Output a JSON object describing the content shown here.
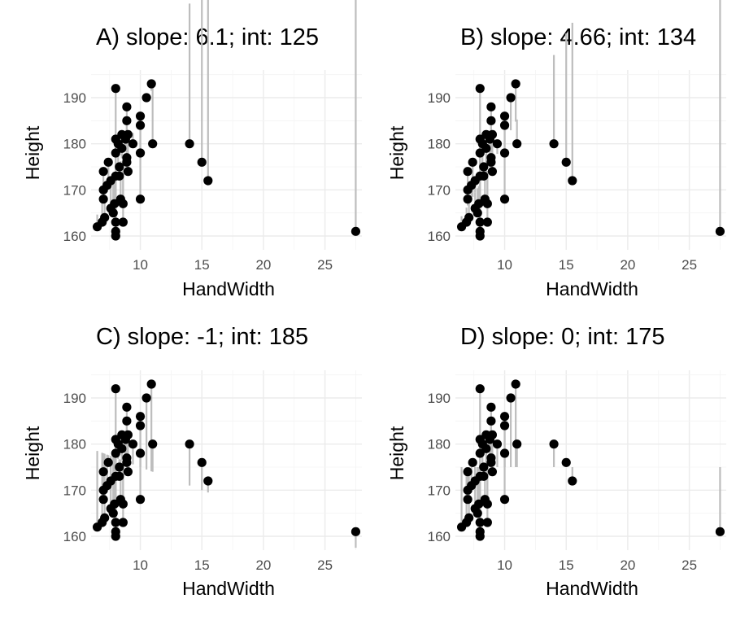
{
  "chart_data": [
    {
      "type": "scatter",
      "title": "A) slope:  6.1; int: 125",
      "xlabel": "HandWidth",
      "ylabel": "Height",
      "slope": 6.1,
      "intercept": 125,
      "xlim": [
        6,
        28
      ],
      "ylim": [
        157,
        196
      ],
      "xticks": [
        10,
        15,
        20,
        25
      ],
      "yticks": [
        160,
        170,
        180,
        190
      ],
      "grid": true,
      "residual_segments": true
    },
    {
      "type": "scatter",
      "title": "B) slope:  4.66; int: 134",
      "xlabel": "HandWidth",
      "ylabel": "Height",
      "slope": 4.66,
      "intercept": 134,
      "xlim": [
        6,
        28
      ],
      "ylim": [
        157,
        196
      ],
      "xticks": [
        10,
        15,
        20,
        25
      ],
      "yticks": [
        160,
        170,
        180,
        190
      ],
      "grid": true,
      "residual_segments": true
    },
    {
      "type": "scatter",
      "title": "C) slope:  -1; int: 185",
      "xlabel": "HandWidth",
      "ylabel": "Height",
      "slope": -1,
      "intercept": 185,
      "xlim": [
        6,
        28
      ],
      "ylim": [
        157,
        196
      ],
      "xticks": [
        10,
        15,
        20,
        25
      ],
      "yticks": [
        160,
        170,
        180,
        190
      ],
      "grid": true,
      "residual_segments": true
    },
    {
      "type": "scatter",
      "title": "D) slope:  0; int: 175",
      "xlabel": "HandWidth",
      "ylabel": "Height",
      "slope": 0,
      "intercept": 175,
      "xlim": [
        6,
        28
      ],
      "ylim": [
        157,
        196
      ],
      "xticks": [
        10,
        15,
        20,
        25
      ],
      "yticks": [
        160,
        170,
        180,
        190
      ],
      "grid": true,
      "residual_segments": true
    }
  ],
  "points": [
    {
      "x": 6.5,
      "y": 162
    },
    {
      "x": 6.9,
      "y": 163
    },
    {
      "x": 7.0,
      "y": 174
    },
    {
      "x": 7.0,
      "y": 170
    },
    {
      "x": 7.0,
      "y": 168
    },
    {
      "x": 7.1,
      "y": 164
    },
    {
      "x": 7.3,
      "y": 171
    },
    {
      "x": 7.4,
      "y": 176
    },
    {
      "x": 7.6,
      "y": 172
    },
    {
      "x": 7.6,
      "y": 166
    },
    {
      "x": 7.8,
      "y": 165
    },
    {
      "x": 7.9,
      "y": 167
    },
    {
      "x": 8.0,
      "y": 192
    },
    {
      "x": 8.0,
      "y": 181
    },
    {
      "x": 8.0,
      "y": 178
    },
    {
      "x": 8.0,
      "y": 173
    },
    {
      "x": 8.0,
      "y": 163
    },
    {
      "x": 8.0,
      "y": 161
    },
    {
      "x": 8.0,
      "y": 160
    },
    {
      "x": 8.2,
      "y": 180
    },
    {
      "x": 8.3,
      "y": 175
    },
    {
      "x": 8.3,
      "y": 173
    },
    {
      "x": 8.4,
      "y": 168
    },
    {
      "x": 8.5,
      "y": 182
    },
    {
      "x": 8.5,
      "y": 179
    },
    {
      "x": 8.6,
      "y": 167
    },
    {
      "x": 8.6,
      "y": 163
    },
    {
      "x": 8.8,
      "y": 181
    },
    {
      "x": 8.9,
      "y": 188
    },
    {
      "x": 8.9,
      "y": 185
    },
    {
      "x": 8.9,
      "y": 177
    },
    {
      "x": 8.9,
      "y": 176
    },
    {
      "x": 9.0,
      "y": 182
    },
    {
      "x": 9.0,
      "y": 174
    },
    {
      "x": 9.4,
      "y": 180
    },
    {
      "x": 10.0,
      "y": 186
    },
    {
      "x": 10.0,
      "y": 184
    },
    {
      "x": 10.0,
      "y": 178
    },
    {
      "x": 10.0,
      "y": 168
    },
    {
      "x": 10.5,
      "y": 190
    },
    {
      "x": 10.9,
      "y": 193
    },
    {
      "x": 11.0,
      "y": 180
    },
    {
      "x": 14.0,
      "y": 180
    },
    {
      "x": 15.0,
      "y": 176
    },
    {
      "x": 15.5,
      "y": 172
    },
    {
      "x": 27.5,
      "y": 161
    }
  ]
}
